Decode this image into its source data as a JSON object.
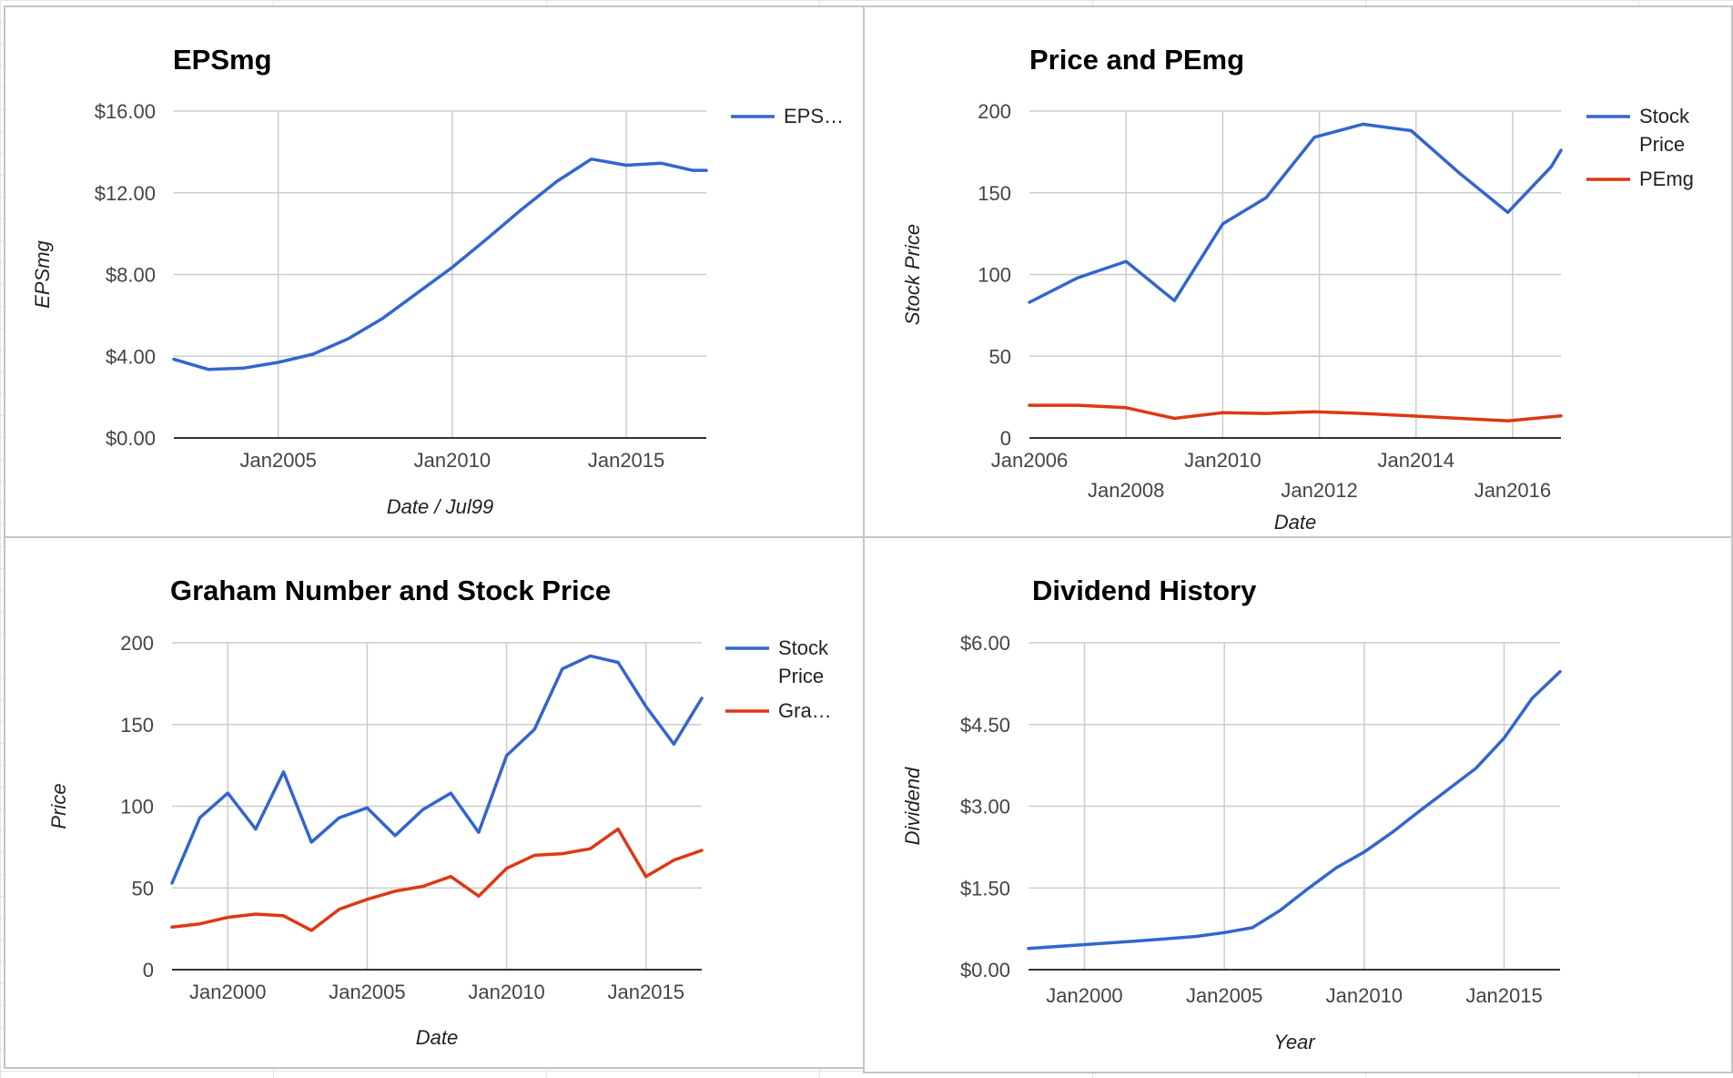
{
  "chart_data": [
    {
      "type": "line",
      "title": "EPSmg",
      "xlabel": "Date / Jul99",
      "ylabel": "EPSmg",
      "xlim": [
        2002.0,
        2017.3
      ],
      "ylim": [
        0,
        16
      ],
      "y_ticks": [
        0,
        4,
        8,
        12,
        16
      ],
      "y_tick_labels": [
        "$0.00",
        "$4.00",
        "$8.00",
        "$12.00",
        "$16.00"
      ],
      "x_ticks": [
        2005,
        2010,
        2015
      ],
      "x_tick_labels": [
        "Jan2005",
        "Jan2010",
        "Jan2015"
      ],
      "grid": true,
      "legend_position": "right",
      "colors": [
        "#3366cc"
      ],
      "series": [
        {
          "name": "EPS…",
          "color": "#3366cc",
          "points": [
            [
              2002.0,
              3.85
            ],
            [
              2003.0,
              3.35
            ],
            [
              2004.0,
              3.42
            ],
            [
              2005.0,
              3.7
            ],
            [
              2006.0,
              4.1
            ],
            [
              2007.0,
              4.85
            ],
            [
              2008.0,
              5.85
            ],
            [
              2009.0,
              7.1
            ],
            [
              2010.0,
              8.35
            ],
            [
              2011.0,
              9.75
            ],
            [
              2012.0,
              11.2
            ],
            [
              2013.0,
              12.55
            ],
            [
              2014.0,
              13.65
            ],
            [
              2015.0,
              13.35
            ],
            [
              2016.0,
              13.45
            ],
            [
              2016.9,
              13.1
            ],
            [
              2017.3,
              13.1
            ]
          ]
        }
      ]
    },
    {
      "type": "line",
      "title": "Price and PEmg",
      "xlabel": "Date",
      "ylabel": "Stock Price",
      "xlim": [
        2006.0,
        2017.0
      ],
      "ylim": [
        0,
        200
      ],
      "y_ticks": [
        0,
        50,
        100,
        150,
        200
      ],
      "y_tick_labels": [
        "0",
        "50",
        "100",
        "150",
        "200"
      ],
      "x_ticks": [
        2006,
        2008,
        2010,
        2012,
        2014,
        2016
      ],
      "x_tick_labels": [
        "Jan2006",
        "Jan2008",
        "Jan2010",
        "Jan2012",
        "Jan2014",
        "Jan2016"
      ],
      "grid": true,
      "legend_position": "right",
      "colors": [
        "#3366cc",
        "#dc3912"
      ],
      "series": [
        {
          "name": "Stock Price",
          "color": "#3366cc",
          "points": [
            [
              2006.0,
              83
            ],
            [
              2007.0,
              98
            ],
            [
              2008.0,
              108
            ],
            [
              2009.0,
              84
            ],
            [
              2010.0,
              131
            ],
            [
              2010.9,
              147
            ],
            [
              2011.9,
              184
            ],
            [
              2012.9,
              192
            ],
            [
              2013.9,
              188
            ],
            [
              2014.9,
              162
            ],
            [
              2015.9,
              138
            ],
            [
              2016.8,
              166
            ],
            [
              2017.0,
              176
            ]
          ]
        },
        {
          "name": "PEmg",
          "color": "#dc3912",
          "points": [
            [
              2006.0,
              20
            ],
            [
              2007.0,
              20
            ],
            [
              2008.0,
              18.5
            ],
            [
              2009.0,
              12
            ],
            [
              2010.0,
              15.5
            ],
            [
              2010.9,
              15
            ],
            [
              2011.9,
              16
            ],
            [
              2012.9,
              15
            ],
            [
              2013.9,
              13.5
            ],
            [
              2014.9,
              12
            ],
            [
              2015.9,
              10.5
            ],
            [
              2017.0,
              13.5
            ]
          ]
        }
      ]
    },
    {
      "type": "line",
      "title": "Graham Number and Stock Price",
      "xlabel": "Date",
      "ylabel": "Price",
      "xlim": [
        1998.0,
        2017.0
      ],
      "ylim": [
        0,
        200
      ],
      "y_ticks": [
        0,
        50,
        100,
        150,
        200
      ],
      "y_tick_labels": [
        "0",
        "50",
        "100",
        "150",
        "200"
      ],
      "x_ticks": [
        2000,
        2005,
        2010,
        2015
      ],
      "x_tick_labels": [
        "Jan2000",
        "Jan2005",
        "Jan2010",
        "Jan2015"
      ],
      "grid": true,
      "legend_position": "right",
      "colors": [
        "#3366cc",
        "#dc3912"
      ],
      "series": [
        {
          "name": "Stock Price",
          "color": "#3366cc",
          "points": [
            [
              1998.0,
              53
            ],
            [
              1999.0,
              93
            ],
            [
              2000.0,
              108
            ],
            [
              2001.0,
              86
            ],
            [
              2002.0,
              121
            ],
            [
              2003.0,
              78
            ],
            [
              2004.0,
              93
            ],
            [
              2005.0,
              99
            ],
            [
              2006.0,
              82
            ],
            [
              2007.0,
              98
            ],
            [
              2008.0,
              108
            ],
            [
              2009.0,
              84
            ],
            [
              2010.0,
              131
            ],
            [
              2011.0,
              147
            ],
            [
              2012.0,
              184
            ],
            [
              2013.0,
              192
            ],
            [
              2014.0,
              188
            ],
            [
              2015.0,
              161
            ],
            [
              2016.0,
              138
            ],
            [
              2017.0,
              166
            ]
          ]
        },
        {
          "name": "Gra…",
          "color": "#dc3912",
          "points": [
            [
              1998.0,
              26
            ],
            [
              1999.0,
              28
            ],
            [
              2000.0,
              32
            ],
            [
              2001.0,
              34
            ],
            [
              2002.0,
              33
            ],
            [
              2003.0,
              24
            ],
            [
              2004.0,
              37
            ],
            [
              2005.0,
              43
            ],
            [
              2006.0,
              48
            ],
            [
              2007.0,
              51
            ],
            [
              2008.0,
              57
            ],
            [
              2009.0,
              45
            ],
            [
              2010.0,
              62
            ],
            [
              2011.0,
              70
            ],
            [
              2012.0,
              71
            ],
            [
              2013.0,
              74
            ],
            [
              2014.0,
              86
            ],
            [
              2015.0,
              57
            ],
            [
              2016.0,
              67
            ],
            [
              2017.0,
              73
            ]
          ]
        }
      ]
    },
    {
      "type": "line",
      "title": "Dividend History",
      "xlabel": "Year",
      "ylabel": "Dividend",
      "xlim": [
        1998.0,
        2017.0
      ],
      "ylim": [
        0,
        6
      ],
      "y_ticks": [
        0,
        1.5,
        3,
        4.5,
        6
      ],
      "y_tick_labels": [
        "$0.00",
        "$1.50",
        "$3.00",
        "$4.50",
        "$6.00"
      ],
      "x_ticks": [
        2000,
        2005,
        2010,
        2015
      ],
      "x_tick_labels": [
        "Jan2000",
        "Jan2005",
        "Jan2010",
        "Jan2015"
      ],
      "grid": true,
      "legend_position": "none",
      "colors": [
        "#3366cc"
      ],
      "series": [
        {
          "name": "",
          "color": "#3366cc",
          "points": [
            [
              1998.0,
              0.39
            ],
            [
              2000.0,
              0.46
            ],
            [
              2002.0,
              0.53
            ],
            [
              2004.0,
              0.61
            ],
            [
              2005.0,
              0.68
            ],
            [
              2006.0,
              0.77
            ],
            [
              2007.0,
              1.09
            ],
            [
              2008.0,
              1.49
            ],
            [
              2009.0,
              1.87
            ],
            [
              2010.0,
              2.16
            ],
            [
              2011.0,
              2.52
            ],
            [
              2012.0,
              2.92
            ],
            [
              2013.0,
              3.31
            ],
            [
              2014.0,
              3.7
            ],
            [
              2015.0,
              4.25
            ],
            [
              2016.0,
              4.98
            ],
            [
              2017.0,
              5.47
            ]
          ]
        }
      ]
    }
  ]
}
